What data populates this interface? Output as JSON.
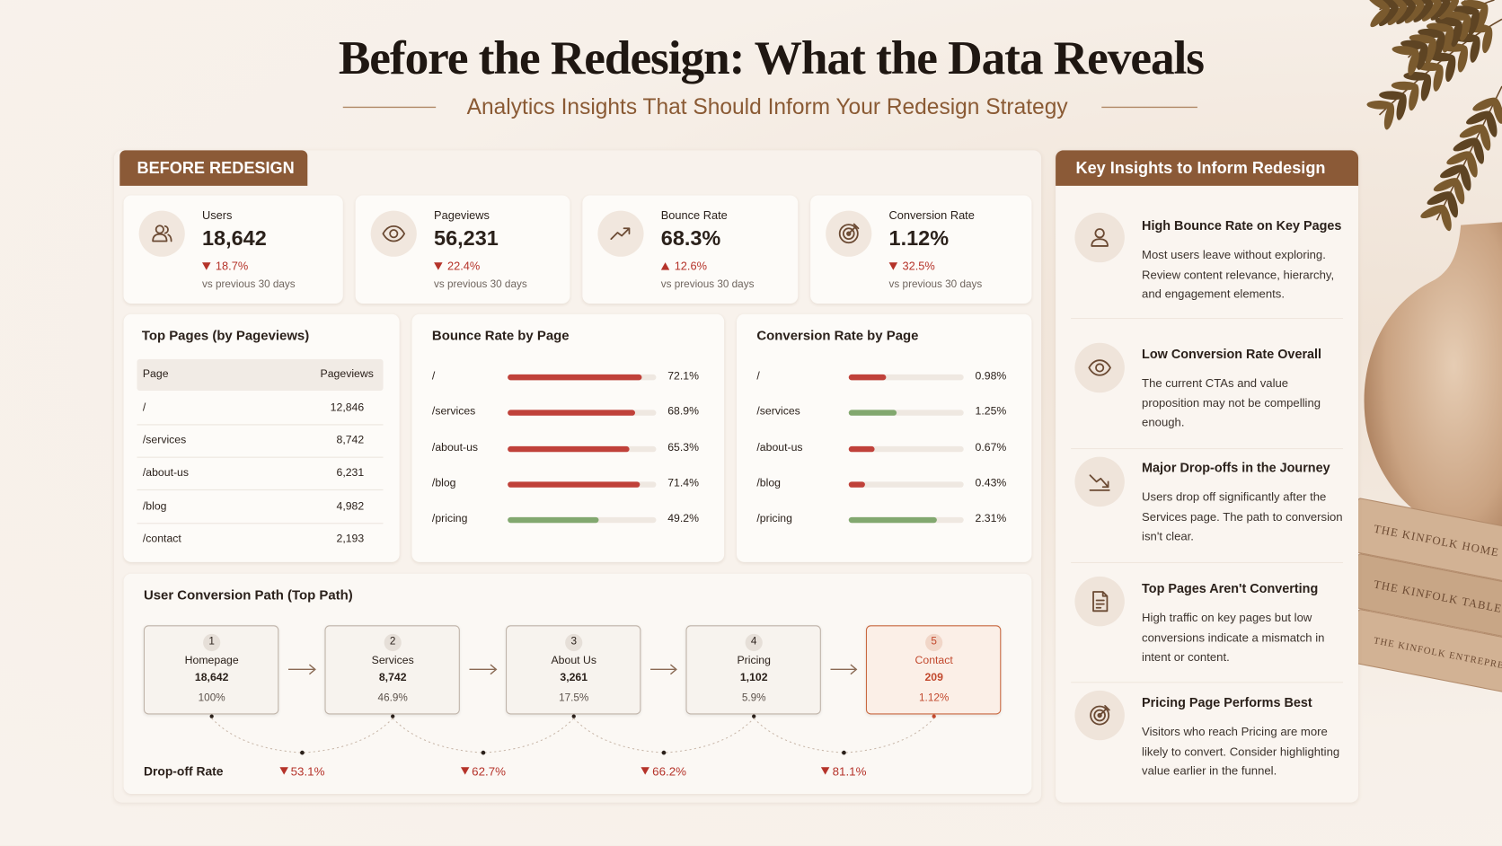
{
  "header": {
    "title": "Before the Redesign: What the Data Reveals",
    "subtitle": "Analytics Insights That Should Inform Your Redesign Strategy"
  },
  "badge": "BEFORE REDESIGN",
  "kpis": [
    {
      "label": "Users",
      "value": "18,642",
      "change": "18.7%",
      "direction": "down",
      "note": "vs previous 30 days"
    },
    {
      "label": "Pageviews",
      "value": "56,231",
      "change": "22.4%",
      "direction": "down",
      "note": "vs previous 30 days"
    },
    {
      "label": "Bounce Rate",
      "value": "68.3%",
      "change": "12.6%",
      "direction": "up",
      "note": "vs previous 30 days"
    },
    {
      "label": "Conversion Rate",
      "value": "1.12%",
      "change": "32.5%",
      "direction": "down",
      "note": "vs previous 30 days"
    }
  ],
  "top_pages": {
    "title": "Top Pages (by Pageviews)",
    "columns": [
      "Page",
      "Pageviews"
    ],
    "rows": [
      [
        "/",
        "12,846"
      ],
      [
        "/services",
        "8,742"
      ],
      [
        "/about-us",
        "6,231"
      ],
      [
        "/blog",
        "4,982"
      ],
      [
        "/contact",
        "2,193"
      ]
    ]
  },
  "bounce_rate": {
    "title": "Bounce Rate by Page",
    "categories": [
      "/",
      "/services",
      "/about-us",
      "/blog",
      "/pricing"
    ],
    "values": [
      72.1,
      68.9,
      65.3,
      71.4,
      49.2
    ],
    "value_labels": [
      "72.1%",
      "68.9%",
      "65.3%",
      "71.4%",
      "49.2%"
    ],
    "colors": [
      "#c0413a",
      "#c0413a",
      "#c0413a",
      "#c0413a",
      "#82a86f"
    ],
    "xlim": [
      0,
      80
    ]
  },
  "conversion_rate": {
    "title": "Conversion Rate by Page",
    "categories": [
      "/",
      "/services",
      "/about-us",
      "/blog",
      "/pricing"
    ],
    "values": [
      0.98,
      1.25,
      0.67,
      0.43,
      2.31
    ],
    "value_labels": [
      "0.98%",
      "1.25%",
      "0.67%",
      "0.43%",
      "2.31%"
    ],
    "colors": [
      "#c0413a",
      "#82a86f",
      "#c0413a",
      "#c0413a",
      "#82a86f"
    ],
    "xlim": [
      0,
      3
    ]
  },
  "path": {
    "title": "User Conversion Path (Top Path)",
    "steps": [
      {
        "number": "1",
        "name": "Homepage",
        "users": "18,642",
        "share": "100%",
        "highlight": false
      },
      {
        "number": "2",
        "name": "Services",
        "users": "8,742",
        "share": "46.9%",
        "highlight": false
      },
      {
        "number": "3",
        "name": "About Us",
        "users": "3,261",
        "share": "17.5%",
        "highlight": false
      },
      {
        "number": "4",
        "name": "Pricing",
        "users": "1,102",
        "share": "5.9%",
        "highlight": false
      },
      {
        "number": "5",
        "name": "Contact",
        "users": "209",
        "share": "1.12%",
        "highlight": true
      }
    ],
    "dropoff": {
      "label": "Drop-off Rate",
      "values": [
        "53.1%",
        "62.7%",
        "66.2%",
        "81.1%"
      ]
    }
  },
  "insights": {
    "title": "Key Insights to Inform Redesign",
    "items": [
      {
        "title": "High Bounce Rate on Key Pages",
        "text": "Most users leave without exploring. Review content relevance, hierarchy, and engagement elements."
      },
      {
        "title": "Low Conversion Rate Overall",
        "text": "The current CTAs and value proposition may not be compelling enough."
      },
      {
        "title": "Major Drop-offs in the Journey",
        "text": "Users drop off significantly after the Services page. The path to conversion isn't clear."
      },
      {
        "title": "Top Pages Aren't Converting",
        "text": "High traffic on key pages but low conversions indicate a mismatch in intent or content."
      },
      {
        "title": "Pricing Page Performs Best",
        "text": "Visitors who reach Pricing are more likely to convert. Consider highlighting value earlier in the funnel."
      }
    ]
  },
  "decor": {
    "books": [
      "THE KINFOLK HOME",
      "THE KINFOLK TABLE",
      "THE KINFOLK ENTREPRENEUR"
    ]
  }
}
